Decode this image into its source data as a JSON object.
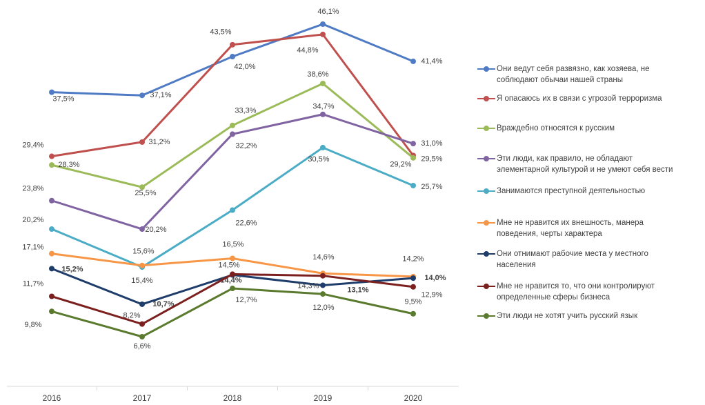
{
  "chart_data": {
    "type": "line",
    "categories": [
      "2016",
      "2017",
      "2018",
      "2019",
      "2020"
    ],
    "series": [
      {
        "name": "Они  ведут себя развязно, как хозяева, не соблюдают обычаи нашей страны",
        "color": "#4f7bc4",
        "values": [
          37.5,
          37.1,
          42.0,
          46.1,
          41.4
        ],
        "value_labels": [
          "37,5%",
          "37,1%",
          "42,0%",
          "46,1%",
          "41,4%"
        ]
      },
      {
        "name": "Я опасаюсь их в связи с угрозой терроризма",
        "color": "#c0504d",
        "values": [
          29.4,
          31.2,
          43.5,
          44.8,
          29.5
        ],
        "value_labels": [
          "29,4%",
          "31,2%",
          "43,5%",
          "44,8%",
          "29,5%"
        ]
      },
      {
        "name": "Враждебно относятся к русским",
        "color": "#9bbb59",
        "values": [
          28.3,
          25.5,
          33.3,
          38.6,
          29.2
        ],
        "value_labels": [
          "28,3%",
          "25,5%",
          "33,3%",
          "38,6%",
          "29,2%"
        ]
      },
      {
        "name": "Эти люди, как правило, не обладают элементарной культурой и не умеют себя вести",
        "color": "#8064a2",
        "values": [
          23.8,
          20.2,
          32.2,
          34.7,
          31.0
        ],
        "value_labels": [
          "23,8%",
          "20,2%",
          "32,2%",
          "34,7%",
          "31,0%"
        ]
      },
      {
        "name": "Занимаются преступной деятельностью",
        "color": "#4bacc6",
        "values": [
          20.2,
          15.4,
          22.6,
          30.5,
          25.7
        ],
        "value_labels": [
          "20,2%",
          "15,4%",
          "22,6%",
          "30,5%",
          "25,7%"
        ]
      },
      {
        "name": "Мне не нравится их внешность, манера поведения, черты характера",
        "color": "#f79646",
        "values": [
          17.1,
          15.6,
          16.5,
          14.6,
          14.2
        ],
        "value_labels": [
          "17,1%",
          "15,6%",
          "16,5%",
          "14,6%",
          "14,2%"
        ]
      },
      {
        "name": "Они  отнимают рабочие места у местного населения",
        "color": "#1f3d6b",
        "bold_labels": true,
        "values": [
          15.2,
          10.7,
          14.4,
          13.1,
          14.0
        ],
        "value_labels": [
          "15,2%",
          "10,7%",
          "14,4%",
          "13,1%",
          "14,0%"
        ]
      },
      {
        "name": "Мне не нравится то, что они контролируют определенные сферы бизнеса",
        "color": "#7b1f1f",
        "values": [
          11.7,
          8.2,
          14.5,
          14.3,
          12.9
        ],
        "value_labels": [
          "11,7%",
          "8,2%",
          "14,5%",
          "14,3%",
          "12,9%"
        ]
      },
      {
        "name": "Эти люди не хотят учить русский язык",
        "color": "#5a7a2e",
        "values": [
          9.8,
          6.6,
          12.7,
          12.0,
          9.5
        ],
        "value_labels": [
          "9,8%",
          "6,6%",
          "12,7%",
          "12,0%",
          "9,5%"
        ]
      }
    ]
  }
}
